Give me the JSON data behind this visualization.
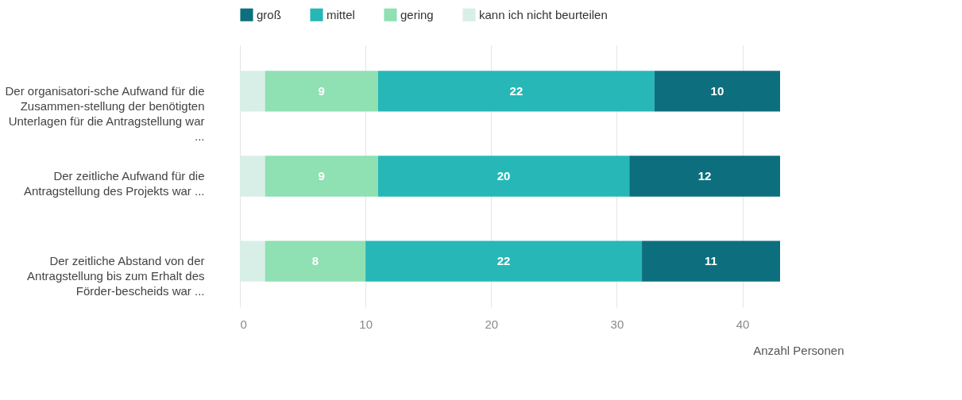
{
  "chart_data": {
    "type": "bar",
    "orientation": "horizontal",
    "stacked": true,
    "categories": [
      "Der organisatori-sche Aufwand für die\nZusammen-stellung der benötigten\nUnterlagen für die Antragstellung war\n...",
      "Der zeitliche Aufwand für die\nAntragstellung des Projekts war ...",
      "Der zeitliche Abstand von der\nAntragstellung bis zum Erhalt des\nFörder-bescheids war ..."
    ],
    "series": [
      {
        "name": "kann ich nicht beurteilen",
        "color": "#d8efe8",
        "values": [
          2,
          2,
          2
        ],
        "value_labels": [
          null,
          null,
          null
        ]
      },
      {
        "name": "gering",
        "color": "#8fe0b3",
        "values": [
          9,
          9,
          8
        ],
        "value_labels": [
          "9",
          "9",
          "8"
        ]
      },
      {
        "name": "mittel",
        "color": "#27b7b7",
        "values": [
          22,
          20,
          22
        ],
        "value_labels": [
          "22",
          "20",
          "22"
        ]
      },
      {
        "name": "groß",
        "color": "#0d6f7d",
        "values": [
          10,
          12,
          11
        ],
        "value_labels": [
          "10",
          "12",
          "11"
        ]
      }
    ],
    "xlim": [
      0,
      43
    ],
    "xticks": [
      0,
      10,
      20,
      30,
      40
    ],
    "xlabel": "Anzahl Personen",
    "grid": "x",
    "legend": "top"
  }
}
